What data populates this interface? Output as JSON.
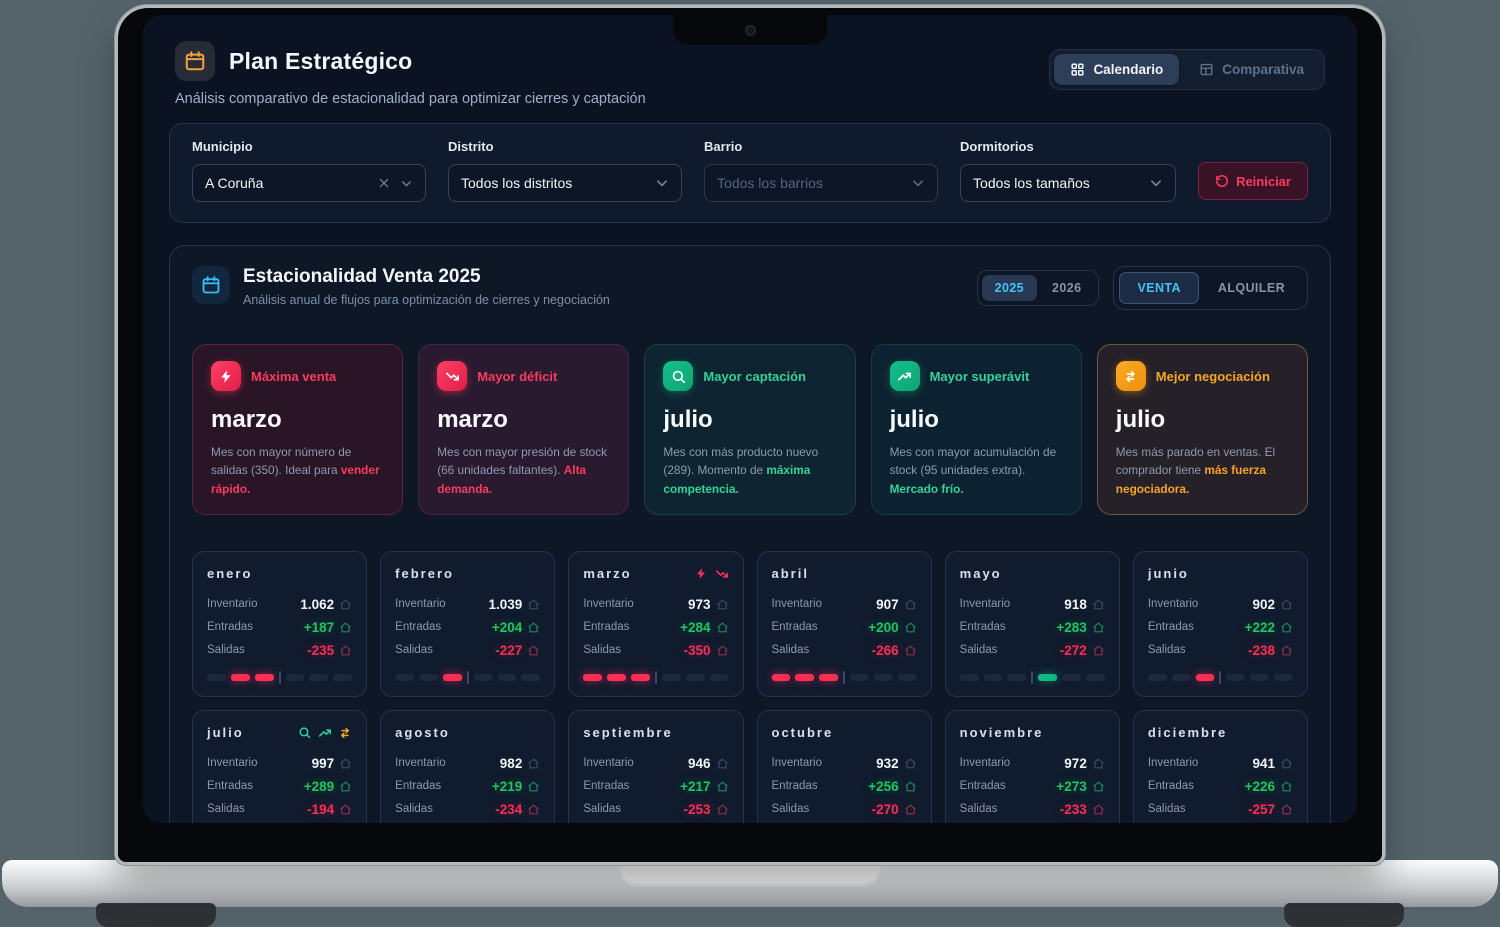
{
  "header": {
    "title": "Plan Estratégico",
    "subtitle": "Análisis comparativo de estacionalidad para optimizar cierres y captación",
    "tabs": {
      "calendar": "Calendario",
      "comparative": "Comparativa"
    }
  },
  "filters": {
    "municipio": {
      "label": "Municipio",
      "value": "A Coruña"
    },
    "distrito": {
      "label": "Distrito",
      "value": "Todos los distritos"
    },
    "barrio": {
      "label": "Barrio",
      "value": "Todos los barrios"
    },
    "dormitorios": {
      "label": "Dormitorios",
      "value": "Todos los tamaños"
    },
    "reset_label": "Reiniciar"
  },
  "season": {
    "title": "Estacionalidad Venta 2025",
    "subtitle": "Análisis anual de flujos para optimización de cierres y negociación",
    "years": {
      "y2025": "2025",
      "y2026": "2026"
    },
    "modes": {
      "venta": "VENTA",
      "alquiler": "ALQUILER"
    }
  },
  "colors": {
    "accent_blue": "#38bdf8",
    "accent_rose": "#fb2e55",
    "accent_green": "#10b981",
    "accent_amber": "#f59e0b"
  },
  "insights": [
    {
      "label": "Máxima venta",
      "month": "marzo",
      "text": "Mes con mayor número de salidas (350). Ideal para ",
      "highlight": "vender rápido."
    },
    {
      "label": "Mayor déficit",
      "month": "marzo",
      "text": "Mes con mayor presión de stock (66 unidades faltantes). ",
      "highlight": "Alta demanda."
    },
    {
      "label": "Mayor captación",
      "month": "julio",
      "text": "Mes con más producto nuevo (289). Momento de ",
      "highlight": "máxima competencia."
    },
    {
      "label": "Mayor superávit",
      "month": "julio",
      "text": "Mes con mayor acumulación de stock (95 unidades extra). ",
      "highlight": "Mercado frío."
    },
    {
      "label": "Mejor negociación",
      "month": "julio",
      "text": "Mes más parado en ventas. El comprador tiene ",
      "highlight": "más fuerza negociadora."
    }
  ],
  "stat_labels": {
    "inventario": "Inventario",
    "entradas": "Entradas",
    "salidas": "Salidas"
  },
  "months": [
    {
      "name": "enero",
      "inventario": "1.062",
      "entradas": "+187",
      "salidas": "-235",
      "bar": {
        "color": "red",
        "segments": [
          0,
          1,
          1,
          0,
          0,
          0
        ]
      },
      "icons": []
    },
    {
      "name": "febrero",
      "inventario": "1.039",
      "entradas": "+204",
      "salidas": "-227",
      "bar": {
        "color": "red",
        "segments": [
          0,
          0,
          1,
          0,
          0,
          0
        ]
      },
      "icons": []
    },
    {
      "name": "marzo",
      "inventario": "973",
      "entradas": "+284",
      "salidas": "-350",
      "bar": {
        "color": "red",
        "segments": [
          1,
          1,
          1,
          0,
          0,
          0
        ]
      },
      "icons": [
        {
          "icon": "zap",
          "color": "red"
        },
        {
          "icon": "trending-down",
          "color": "red"
        }
      ]
    },
    {
      "name": "abril",
      "inventario": "907",
      "entradas": "+200",
      "salidas": "-266",
      "bar": {
        "color": "red",
        "segments": [
          1,
          1,
          1,
          0,
          0,
          0
        ]
      },
      "icons": []
    },
    {
      "name": "mayo",
      "inventario": "918",
      "entradas": "+283",
      "salidas": "-272",
      "bar": {
        "color": "green",
        "segments": [
          0,
          0,
          0,
          1,
          0,
          0
        ]
      },
      "icons": []
    },
    {
      "name": "junio",
      "inventario": "902",
      "entradas": "+222",
      "salidas": "-238",
      "bar": {
        "color": "red",
        "segments": [
          0,
          0,
          1,
          0,
          0,
          0
        ]
      },
      "icons": []
    },
    {
      "name": "julio",
      "inventario": "997",
      "entradas": "+289",
      "salidas": "-194",
      "bar": {
        "color": "green",
        "segments": [
          0,
          0,
          0,
          1,
          1,
          1
        ]
      },
      "icons": [
        {
          "icon": "search",
          "color": "green"
        },
        {
          "icon": "trending-up",
          "color": "green"
        },
        {
          "icon": "swap",
          "color": "amber"
        }
      ]
    },
    {
      "name": "agosto",
      "inventario": "982",
      "entradas": "+219",
      "salidas": "-234",
      "bar": {
        "color": "red",
        "segments": [
          0,
          0,
          1,
          0,
          0,
          0
        ]
      },
      "icons": []
    },
    {
      "name": "septiembre",
      "inventario": "946",
      "entradas": "+217",
      "salidas": "-253",
      "bar": {
        "color": "red",
        "segments": [
          0,
          1,
          1,
          0,
          0,
          0
        ]
      },
      "icons": []
    },
    {
      "name": "octubre",
      "inventario": "932",
      "entradas": "+256",
      "salidas": "-270",
      "bar": {
        "color": "red",
        "segments": [
          0,
          0,
          1,
          0,
          0,
          0
        ]
      },
      "icons": []
    },
    {
      "name": "noviembre",
      "inventario": "972",
      "entradas": "+273",
      "salidas": "-233",
      "bar": {
        "color": "green",
        "segments": [
          0,
          0,
          0,
          1,
          1,
          0
        ]
      },
      "icons": []
    },
    {
      "name": "diciembre",
      "inventario": "941",
      "entradas": "+226",
      "salidas": "-257",
      "bar": {
        "color": "red",
        "segments": [
          0,
          0,
          1,
          0,
          0,
          0
        ]
      },
      "icons": []
    }
  ]
}
